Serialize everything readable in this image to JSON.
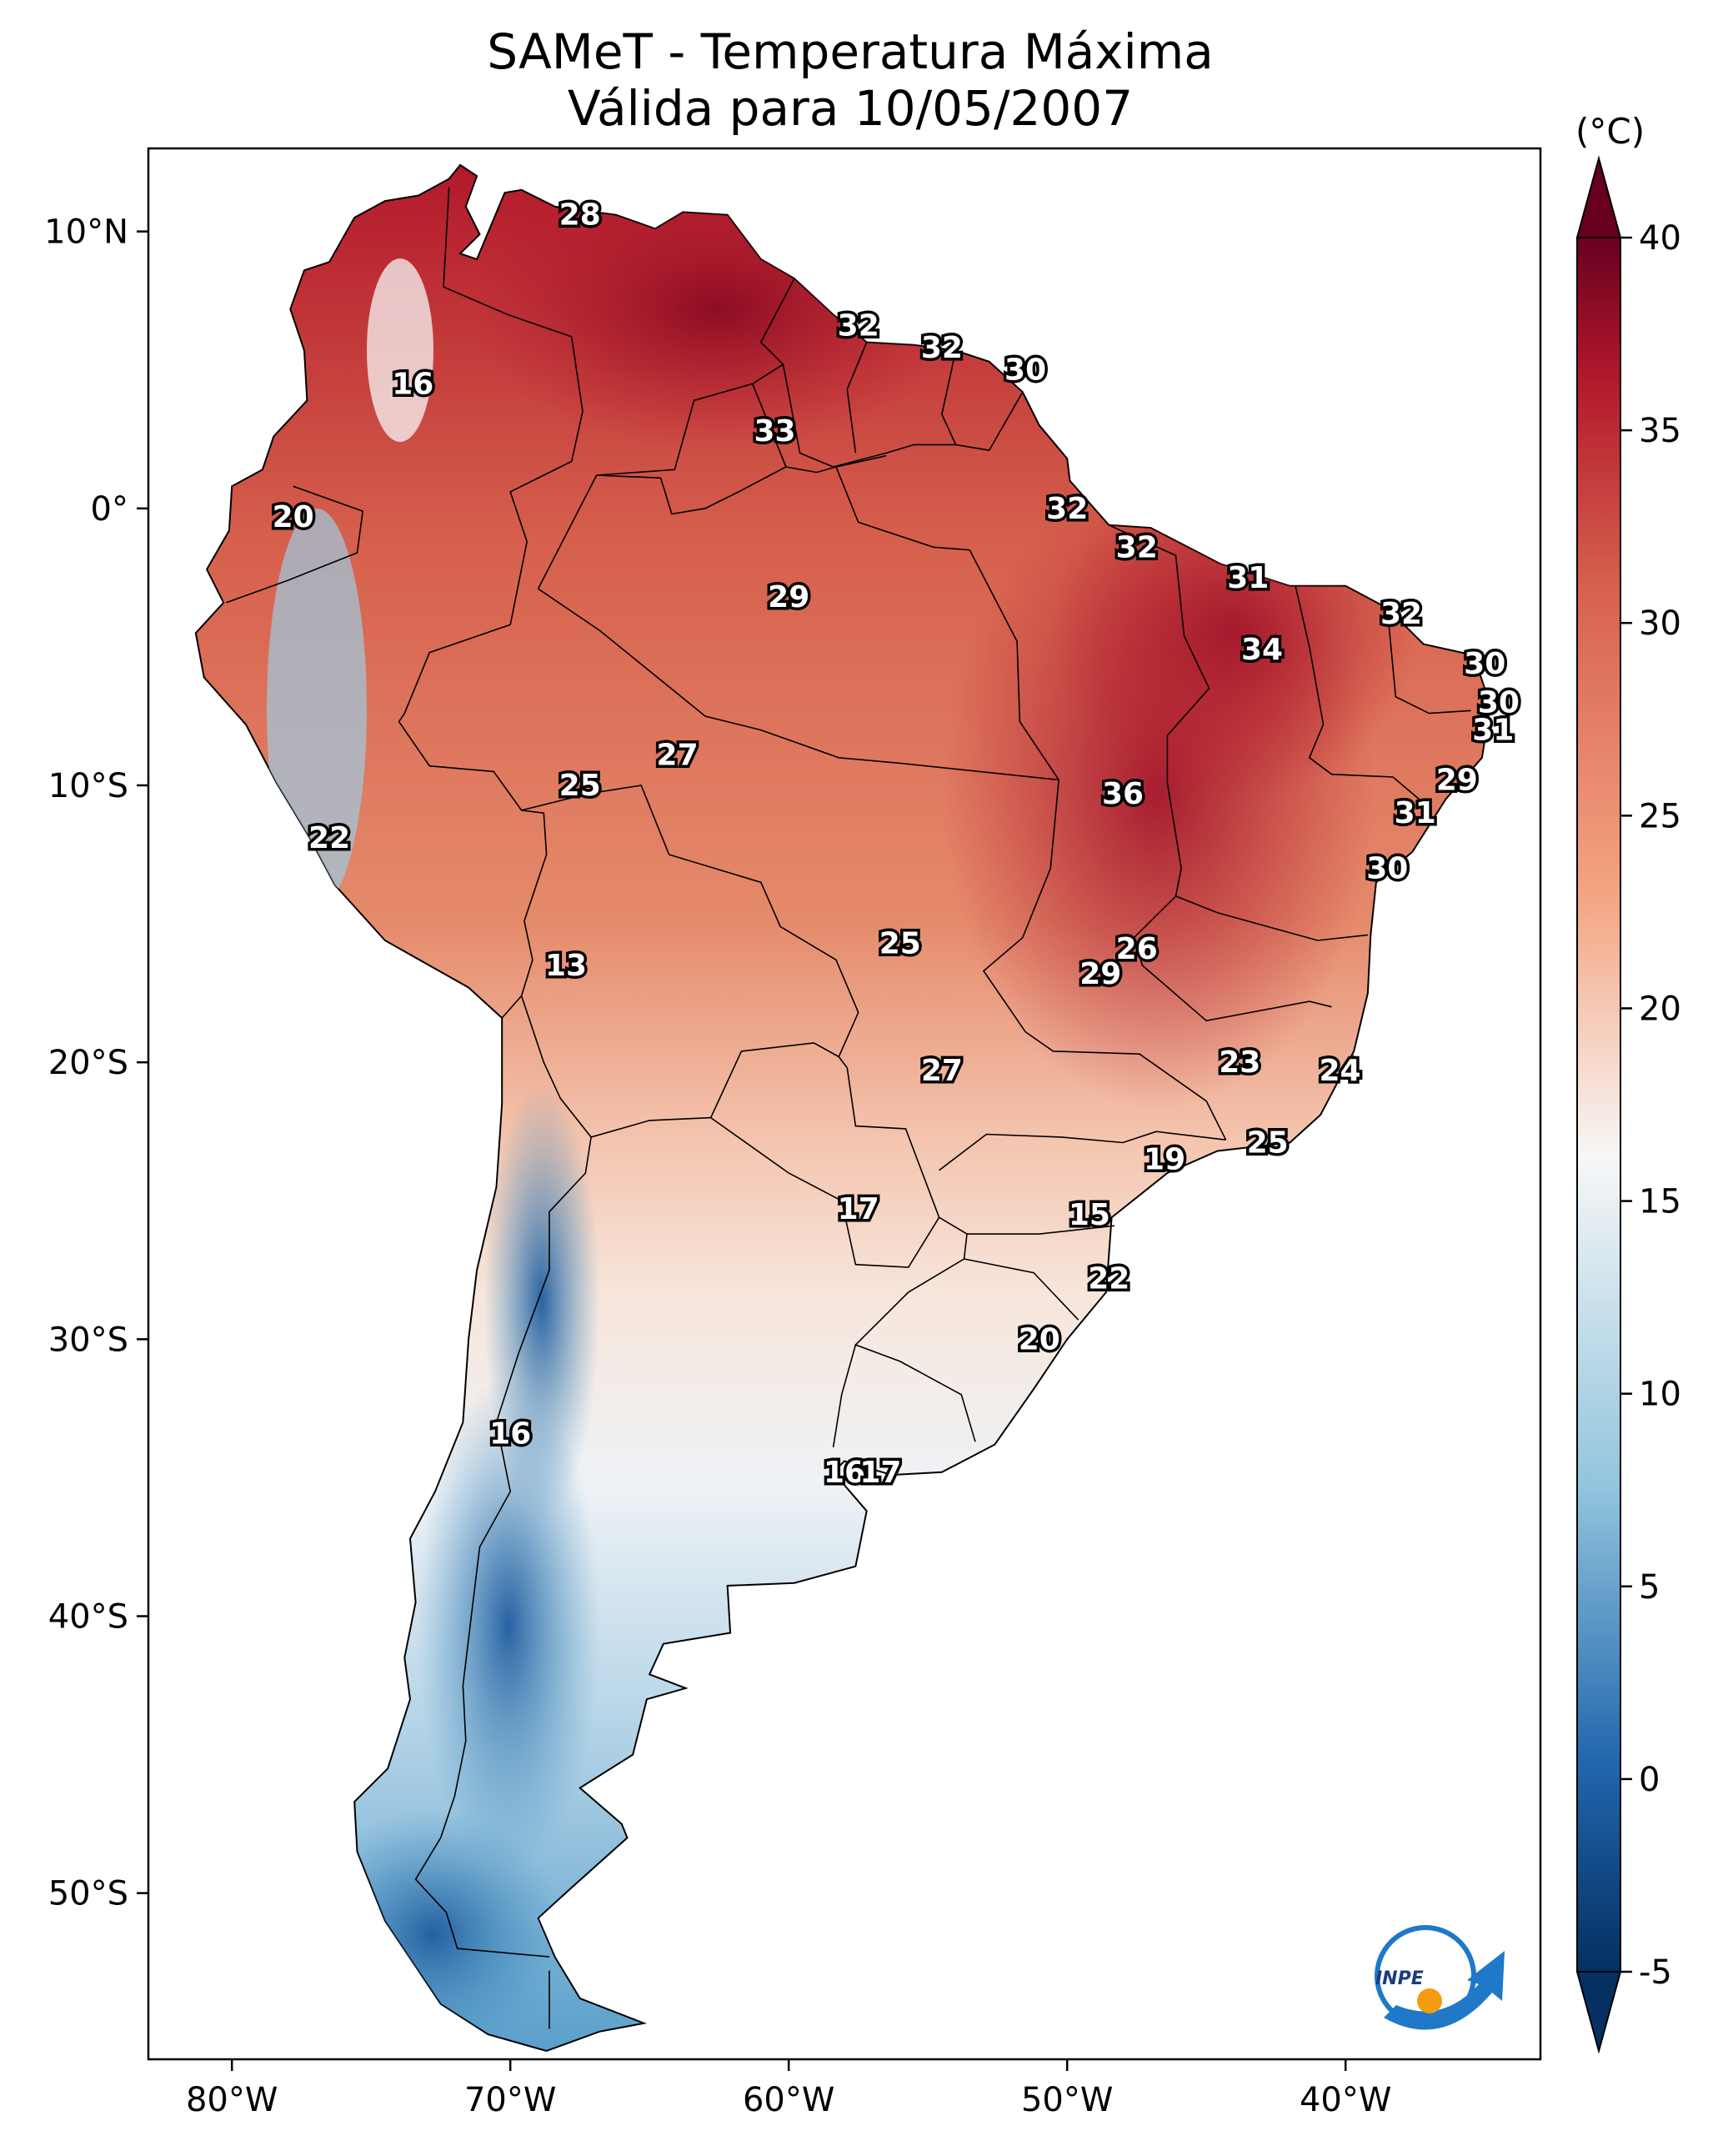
{
  "title": {
    "line1": "SAMeT - Temperatura Máxima",
    "line2": "Válida para 10/05/2007"
  },
  "colorbar": {
    "unit": "(°C)",
    "ticks": [
      "40",
      "35",
      "30",
      "25",
      "20",
      "15",
      "10",
      "5",
      "0",
      "-5"
    ],
    "range": [
      -5,
      40
    ],
    "colors": {
      "min": "#053061",
      "low": "#2166ac",
      "mid_low": "#92c5de",
      "mid": "#f7f7f7",
      "mid_high": "#f4a582",
      "high": "#d6604d",
      "max": "#67001f"
    }
  },
  "axes": {
    "lon_labels": [
      "80°W",
      "70°W",
      "60°W",
      "50°W",
      "40°W"
    ],
    "lat_labels": [
      "10°N",
      "0°",
      "10°S",
      "20°S",
      "30°S",
      "40°S",
      "50°S"
    ],
    "lon_range": [
      -83,
      -33
    ],
    "lat_range": [
      -56,
      13
    ]
  },
  "contour_labels": [
    {
      "text": "28",
      "lon": -67.5,
      "lat": 10.6
    },
    {
      "text": "16",
      "lon": -73.5,
      "lat": 4.5
    },
    {
      "text": "32",
      "lon": -57.5,
      "lat": 6.6
    },
    {
      "text": "32",
      "lon": -54.5,
      "lat": 5.8
    },
    {
      "text": "30",
      "lon": -51.5,
      "lat": 5.0
    },
    {
      "text": "33",
      "lon": -60.5,
      "lat": 2.8
    },
    {
      "text": "20",
      "lon": -77.8,
      "lat": -0.3
    },
    {
      "text": "32",
      "lon": -50.0,
      "lat": 0.0
    },
    {
      "text": "32",
      "lon": -47.5,
      "lat": -1.4
    },
    {
      "text": "29",
      "lon": -60.0,
      "lat": -3.2
    },
    {
      "text": "31",
      "lon": -43.5,
      "lat": -2.5
    },
    {
      "text": "32",
      "lon": -38.0,
      "lat": -3.8
    },
    {
      "text": "34",
      "lon": -43.0,
      "lat": -5.1
    },
    {
      "text": "30",
      "lon": -35.0,
      "lat": -5.6
    },
    {
      "text": "30",
      "lon": -34.5,
      "lat": -7.0
    },
    {
      "text": "31",
      "lon": -34.7,
      "lat": -8.0
    },
    {
      "text": "27",
      "lon": -64.0,
      "lat": -8.9
    },
    {
      "text": "25",
      "lon": -67.5,
      "lat": -10.0
    },
    {
      "text": "36",
      "lon": -48.0,
      "lat": -10.3
    },
    {
      "text": "29",
      "lon": -36.0,
      "lat": -9.8
    },
    {
      "text": "31",
      "lon": -37.5,
      "lat": -11.0
    },
    {
      "text": "22",
      "lon": -76.5,
      "lat": -11.9
    },
    {
      "text": "30",
      "lon": -38.5,
      "lat": -13.0
    },
    {
      "text": "25",
      "lon": -56.0,
      "lat": -15.7
    },
    {
      "text": "26",
      "lon": -47.5,
      "lat": -15.9
    },
    {
      "text": "13",
      "lon": -68.0,
      "lat": -16.5
    },
    {
      "text": "29",
      "lon": -48.8,
      "lat": -16.8
    },
    {
      "text": "23",
      "lon": -43.8,
      "lat": -20.0
    },
    {
      "text": "27",
      "lon": -54.5,
      "lat": -20.3
    },
    {
      "text": "24",
      "lon": -40.2,
      "lat": -20.3
    },
    {
      "text": "25",
      "lon": -42.8,
      "lat": -22.9
    },
    {
      "text": "19",
      "lon": -46.5,
      "lat": -23.5
    },
    {
      "text": "17",
      "lon": -57.5,
      "lat": -25.3
    },
    {
      "text": "15",
      "lon": -49.2,
      "lat": -25.5
    },
    {
      "text": "22",
      "lon": -48.5,
      "lat": -27.8
    },
    {
      "text": "20",
      "lon": -51.0,
      "lat": -30.0
    },
    {
      "text": "16",
      "lon": -70.0,
      "lat": -33.4
    },
    {
      "text": "16",
      "lon": -58.0,
      "lat": -34.8
    },
    {
      "text": "17",
      "lon": -56.7,
      "lat": -34.8
    }
  ]
}
